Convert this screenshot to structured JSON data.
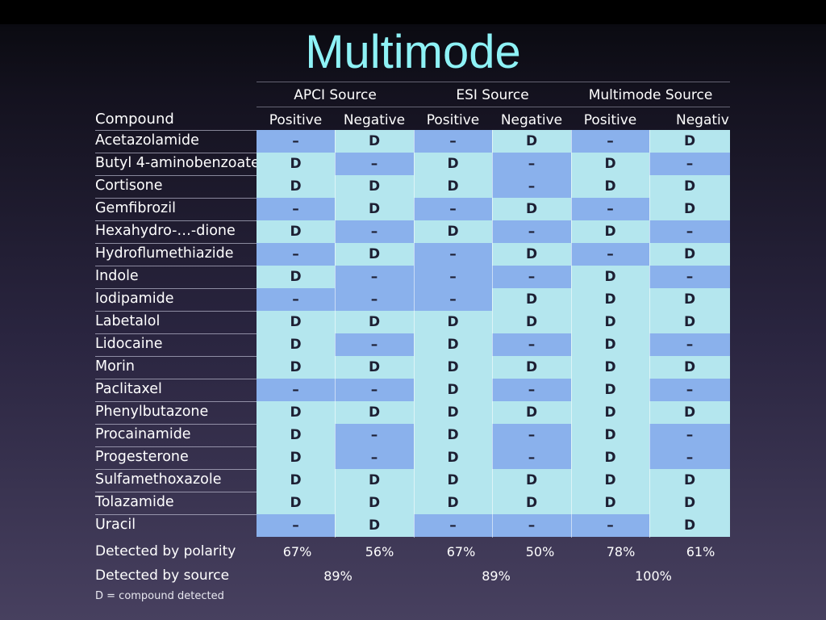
{
  "title": "Multimode",
  "sources": [
    "APCI Source",
    "ESI Source",
    "Multimode Source"
  ],
  "compound_header": "Compound",
  "column_headers": [
    "Positive",
    "Negative",
    "Positive",
    "Negative",
    "Positive",
    "Negativ"
  ],
  "rows": [
    {
      "compound": "Acetazolamide",
      "cells": [
        "–",
        "D",
        "–",
        "D",
        "–",
        "D"
      ]
    },
    {
      "compound": "Butyl 4-aminobenzoate",
      "cells": [
        "D",
        "–",
        "D",
        "–",
        "D",
        "–"
      ]
    },
    {
      "compound": "Cortisone",
      "cells": [
        "D",
        "D",
        "D",
        "–",
        "D",
        "D"
      ]
    },
    {
      "compound": "Gemfibrozil",
      "cells": [
        "–",
        "D",
        "–",
        "D",
        "–",
        "D"
      ]
    },
    {
      "compound": "Hexahydro-…-dione",
      "cells": [
        "D",
        "–",
        "D",
        "–",
        "D",
        "–"
      ]
    },
    {
      "compound": "Hydroflumethiazide",
      "cells": [
        "–",
        "D",
        "–",
        "D",
        "–",
        "D"
      ]
    },
    {
      "compound": "Indole",
      "cells": [
        "D",
        "–",
        "–",
        "–",
        "D",
        "–"
      ]
    },
    {
      "compound": "Iodipamide",
      "cells": [
        "–",
        "–",
        "–",
        "D",
        "D",
        "D"
      ]
    },
    {
      "compound": "Labetalol",
      "cells": [
        "D",
        "D",
        "D",
        "D",
        "D",
        "D"
      ]
    },
    {
      "compound": "Lidocaine",
      "cells": [
        "D",
        "–",
        "D",
        "–",
        "D",
        "–"
      ]
    },
    {
      "compound": "Morin",
      "cells": [
        "D",
        "D",
        "D",
        "D",
        "D",
        "D"
      ]
    },
    {
      "compound": "Paclitaxel",
      "cells": [
        "–",
        "–",
        "D",
        "–",
        "D",
        "–"
      ]
    },
    {
      "compound": "Phenylbutazone",
      "cells": [
        "D",
        "D",
        "D",
        "D",
        "D",
        "D"
      ]
    },
    {
      "compound": "Procainamide",
      "cells": [
        "D",
        "–",
        "D",
        "–",
        "D",
        "–"
      ]
    },
    {
      "compound": "Progesterone",
      "cells": [
        "D",
        "–",
        "D",
        "–",
        "D",
        "–"
      ]
    },
    {
      "compound": "Sulfamethoxazole",
      "cells": [
        "D",
        "D",
        "D",
        "D",
        "D",
        "D"
      ]
    },
    {
      "compound": "Tolazamide",
      "cells": [
        "D",
        "D",
        "D",
        "D",
        "D",
        "D"
      ]
    },
    {
      "compound": "Uracil",
      "cells": [
        "–",
        "D",
        "–",
        "–",
        "–",
        "D"
      ]
    }
  ],
  "polarity": {
    "label": "Detected by polarity",
    "values": [
      "67%",
      "56%",
      "67%",
      "50%",
      "78%",
      "61%"
    ]
  },
  "by_source": {
    "label": "Detected by source",
    "values": [
      "89%",
      "89%",
      "100%"
    ]
  },
  "legend": "D = compound detected",
  "colors": {
    "detected_cell": "#b4e6ee",
    "not_detected_cell": "#8ab1ec",
    "title": "#8ef2f6"
  }
}
